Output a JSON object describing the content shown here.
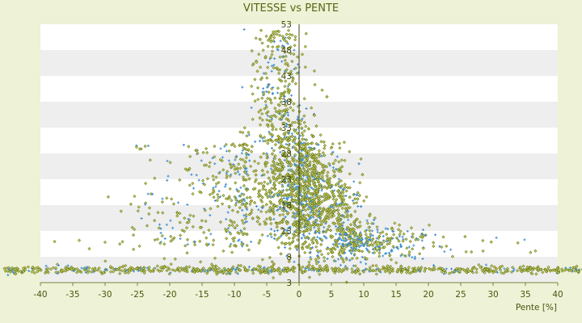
{
  "chart_data": {
    "type": "scatter",
    "title": "VITESSE vs PENTE",
    "xlabel": "Pente [%]",
    "ylabel": "",
    "xlim": [
      -40,
      40
    ],
    "ylim": [
      3,
      53
    ],
    "x_ticks": [
      -40,
      -35,
      -30,
      -25,
      -20,
      -15,
      -10,
      -5,
      0,
      5,
      10,
      15,
      20,
      25,
      30,
      35,
      40
    ],
    "y_ticks": [
      3,
      8,
      13,
      18,
      23,
      28,
      33,
      38,
      43,
      48,
      53
    ],
    "grid": "horizontal alternating bands",
    "legend": "none",
    "series": [
      {
        "color": "#6b7a10",
        "marker": "small diamond"
      },
      {
        "color": "#3f8fd2",
        "marker": "small plus"
      }
    ],
    "note_distribution": "dense cloud centered near slope 0–5 % at speeds 15–30, with outliers up to about 50 and a band near 3–5 across all slopes"
  },
  "colors": {
    "background": "#eef2d6",
    "band_light": "#ffffff",
    "band_dark": "#eeeeee",
    "axis": "#4a5410",
    "text": "#4a5410",
    "title": "#5a6512"
  }
}
